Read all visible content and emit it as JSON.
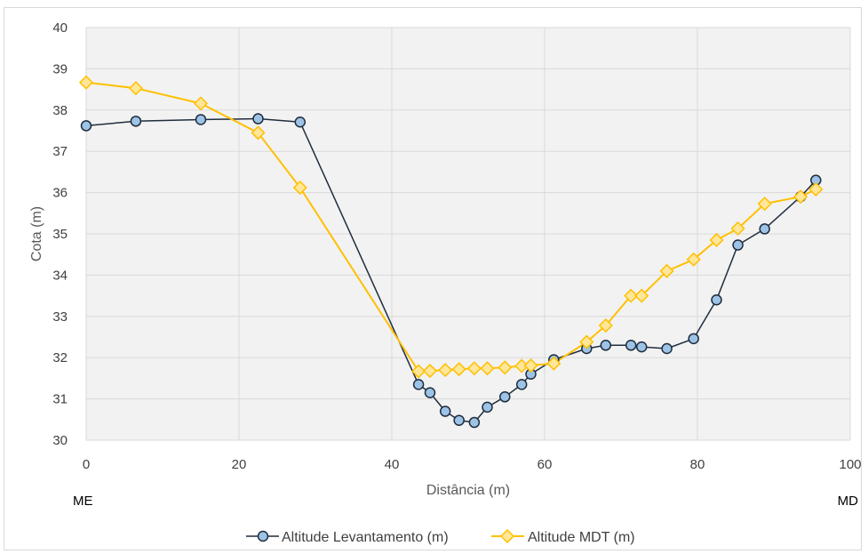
{
  "chart_data": {
    "type": "line",
    "xlabel": "Distância (m)",
    "ylabel": "Cota (m)",
    "xlim": [
      0,
      100
    ],
    "ylim": [
      30,
      40
    ],
    "xticks": [
      0,
      20,
      40,
      60,
      80,
      100
    ],
    "yticks": [
      30,
      31,
      32,
      33,
      34,
      35,
      36,
      37,
      38,
      39,
      40
    ],
    "grid": true,
    "legend_position": "bottom",
    "edge_labels": {
      "left": "ME",
      "right": "MD"
    },
    "series": [
      {
        "name": "Altitude Levantamento (m)",
        "color": "#1f2d3d",
        "marker_fill": "#9dc3e6",
        "marker": "circle",
        "x": [
          0,
          6.5,
          15,
          22.5,
          28,
          43.5,
          45,
          47,
          48.8,
          50.8,
          52.5,
          54.8,
          57,
          58.2,
          61.2,
          65.5,
          68,
          71.3,
          72.7,
          76,
          79.5,
          82.5,
          85.3,
          88.8,
          93.5,
          95.5
        ],
        "y": [
          37.62,
          37.73,
          37.77,
          37.79,
          37.71,
          31.35,
          31.15,
          30.7,
          30.48,
          30.43,
          30.8,
          31.05,
          31.35,
          31.6,
          31.95,
          32.22,
          32.3,
          32.3,
          32.26,
          32.22,
          32.46,
          33.4,
          34.73,
          35.12,
          35.9,
          36.3
        ]
      },
      {
        "name": "Altitude MDT (m)",
        "color": "#ffc000",
        "marker_fill": "#ffe699",
        "marker": "diamond",
        "x": [
          0,
          6.5,
          15,
          22.5,
          28,
          43.5,
          45,
          47,
          48.8,
          50.8,
          52.5,
          54.8,
          57,
          58.2,
          61.2,
          65.5,
          68,
          71.3,
          72.7,
          76,
          79.5,
          82.5,
          85.3,
          88.8,
          93.5,
          95.5
        ],
        "y": [
          38.67,
          38.53,
          38.16,
          37.45,
          36.12,
          31.67,
          31.68,
          31.7,
          31.72,
          31.74,
          31.74,
          31.76,
          31.8,
          31.81,
          31.86,
          32.38,
          32.78,
          33.5,
          33.5,
          34.1,
          34.38,
          34.85,
          35.13,
          35.73,
          35.9,
          36.08
        ]
      }
    ]
  }
}
